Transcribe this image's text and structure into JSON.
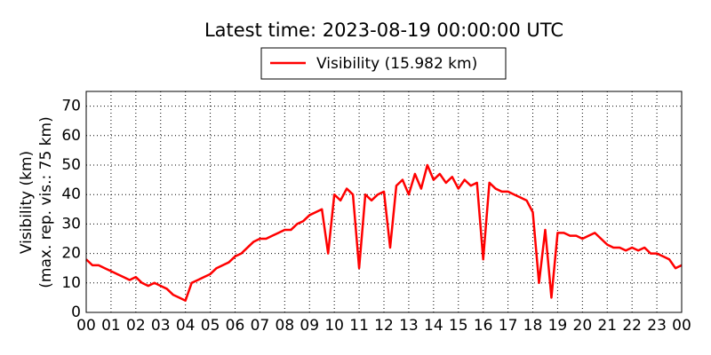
{
  "chart_data": {
    "type": "line",
    "title": "Latest time: 2023-08-19 00:00:00 UTC",
    "ylabel": [
      "Visibility (km)",
      "(max. rep. vis.: 75 km)"
    ],
    "xlim": [
      0,
      24
    ],
    "ylim": [
      0,
      75
    ],
    "xticks": [
      {
        "value": 0,
        "label": "00"
      },
      {
        "value": 1,
        "label": "01"
      },
      {
        "value": 2,
        "label": "02"
      },
      {
        "value": 3,
        "label": "03"
      },
      {
        "value": 4,
        "label": "04"
      },
      {
        "value": 5,
        "label": "05"
      },
      {
        "value": 6,
        "label": "06"
      },
      {
        "value": 7,
        "label": "07"
      },
      {
        "value": 8,
        "label": "08"
      },
      {
        "value": 9,
        "label": "09"
      },
      {
        "value": 10,
        "label": "10"
      },
      {
        "value": 11,
        "label": "11"
      },
      {
        "value": 12,
        "label": "12"
      },
      {
        "value": 13,
        "label": "13"
      },
      {
        "value": 14,
        "label": "14"
      },
      {
        "value": 15,
        "label": "15"
      },
      {
        "value": 16,
        "label": "16"
      },
      {
        "value": 17,
        "label": "17"
      },
      {
        "value": 18,
        "label": "18"
      },
      {
        "value": 19,
        "label": "19"
      },
      {
        "value": 20,
        "label": "20"
      },
      {
        "value": 21,
        "label": "21"
      },
      {
        "value": 22,
        "label": "22"
      },
      {
        "value": 23,
        "label": "23"
      },
      {
        "value": 24,
        "label": "00"
      }
    ],
    "yticks": [
      0,
      10,
      20,
      30,
      40,
      50,
      60,
      70
    ],
    "grid": true,
    "x": [
      0,
      0.25,
      0.5,
      0.75,
      1,
      1.25,
      1.5,
      1.75,
      2,
      2.25,
      2.5,
      2.75,
      3,
      3.25,
      3.5,
      3.75,
      4,
      4.25,
      4.5,
      4.75,
      5,
      5.25,
      5.5,
      5.75,
      6,
      6.25,
      6.5,
      6.75,
      7,
      7.25,
      7.5,
      7.75,
      8,
      8.25,
      8.5,
      8.75,
      9,
      9.25,
      9.5,
      9.75,
      10,
      10.25,
      10.5,
      10.75,
      11,
      11.25,
      11.5,
      11.75,
      12,
      12.25,
      12.5,
      12.75,
      13,
      13.25,
      13.5,
      13.75,
      14,
      14.25,
      14.5,
      14.75,
      15,
      15.25,
      15.5,
      15.75,
      16,
      16.25,
      16.5,
      16.75,
      17,
      17.25,
      17.5,
      17.75,
      18,
      18.25,
      18.5,
      18.75,
      19,
      19.25,
      19.5,
      19.75,
      20,
      20.25,
      20.5,
      20.75,
      21,
      21.25,
      21.5,
      21.75,
      22,
      22.25,
      22.5,
      22.75,
      23,
      23.25,
      23.5,
      23.75,
      24
    ],
    "series": [
      {
        "name": "Visibility (15.982 km)",
        "color": "#ff0000",
        "values": [
          18,
          16,
          16,
          15,
          14,
          13,
          12,
          11,
          12,
          10,
          9,
          10,
          9,
          8,
          6,
          5,
          4,
          10,
          11,
          12,
          13,
          15,
          16,
          17,
          19,
          20,
          22,
          24,
          25,
          25,
          26,
          27,
          28,
          28,
          30,
          31,
          33,
          34,
          35,
          20,
          40,
          38,
          42,
          40,
          15,
          40,
          38,
          40,
          41,
          22,
          43,
          45,
          40,
          47,
          42,
          50,
          45,
          47,
          44,
          46,
          42,
          45,
          43,
          44,
          18,
          44,
          42,
          41,
          41,
          40,
          39,
          38,
          34,
          10,
          28,
          5,
          27,
          27,
          26,
          26,
          25,
          26,
          27,
          25,
          23,
          22,
          22,
          21,
          22,
          21,
          22,
          20,
          20,
          19,
          18,
          15,
          16
        ]
      }
    ]
  }
}
